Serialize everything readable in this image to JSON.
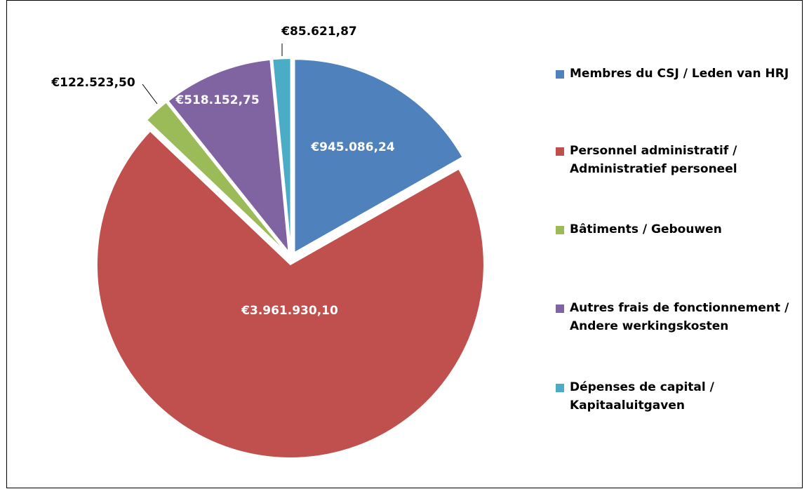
{
  "chart_data": {
    "type": "pie",
    "categories": [
      "Membres du CSJ / Leden van HRJ",
      "Personnel administratif / Administratief personeel",
      "Bâtiments / Gebouwen",
      "Autres frais de fonctionnement / Andere werkingskosten",
      "Dépenses de capital / Kapitaaluitgaven"
    ],
    "values": [
      945086.24,
      3961930.1,
      122523.5,
      518152.75,
      85621.87
    ],
    "value_labels": [
      "€945.086,24",
      "€3.961.930,10",
      "€122.523,50",
      "€518.152,75",
      "€85.621,87"
    ],
    "colors": [
      "#4f81bd",
      "#c0504d",
      "#9bbb59",
      "#8064a2",
      "#4bacc6"
    ]
  }
}
